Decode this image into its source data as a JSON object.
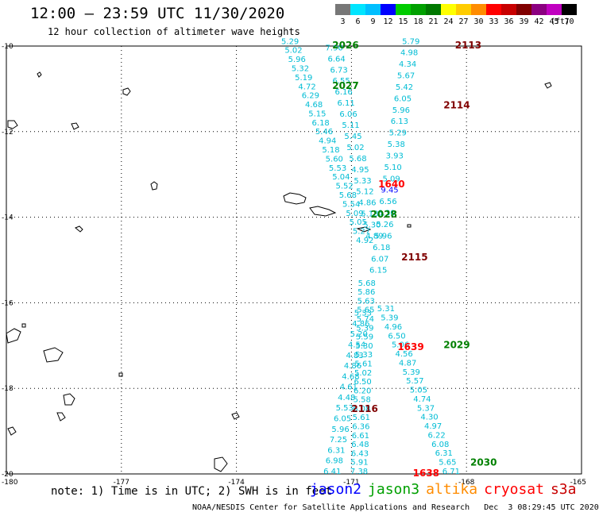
{
  "header": {
    "title": "12:00 — 23:59 UTC 11/30/2020",
    "subtitle": "12 hour collection of altimeter wave heights"
  },
  "scale": {
    "unit": "(ft)",
    "bins": [
      {
        "label": "3",
        "color": "#777777"
      },
      {
        "label": "6",
        "color": "#00e5ff"
      },
      {
        "label": "9",
        "color": "#00bfff"
      },
      {
        "label": "12",
        "color": "#0000ff"
      },
      {
        "label": "15",
        "color": "#00cc00"
      },
      {
        "label": "18",
        "color": "#00a000"
      },
      {
        "label": "21",
        "color": "#007800"
      },
      {
        "label": "24",
        "color": "#ffff00"
      },
      {
        "label": "27",
        "color": "#ffcc00"
      },
      {
        "label": "30",
        "color": "#ff8c00"
      },
      {
        "label": "33",
        "color": "#ff0000"
      },
      {
        "label": "36",
        "color": "#c80000"
      },
      {
        "label": "39",
        "color": "#800000"
      },
      {
        "label": "42",
        "color": "#8b0080"
      },
      {
        "label": "45",
        "color": "#c000c0"
      },
      {
        "label": "70",
        "color": "#000000"
      }
    ]
  },
  "axes": {
    "lat_labels": [
      "-10",
      "-12",
      "-14",
      "-16",
      "-18",
      "-20"
    ],
    "lon_labels": [
      "-180",
      "-177",
      "-174",
      "-171",
      "-168",
      "-165"
    ]
  },
  "track_labels": [
    {
      "text": "2026",
      "color": "#008000",
      "lon": -171.5,
      "lat": -10.0
    },
    {
      "text": "2027",
      "color": "#008000",
      "lon": -171.5,
      "lat": -10.95
    },
    {
      "text": "2028",
      "color": "#008000",
      "lon": -170.5,
      "lat": -13.95
    },
    {
      "text": "2029",
      "color": "#008000",
      "lon": -168.6,
      "lat": -17.0
    },
    {
      "text": "2030",
      "color": "#008000",
      "lon": -167.9,
      "lat": -19.75
    },
    {
      "text": "2113",
      "color": "#800000",
      "lon": -168.3,
      "lat": -10.0
    },
    {
      "text": "2114",
      "color": "#800000",
      "lon": -168.6,
      "lat": -11.4
    },
    {
      "text": "2115",
      "color": "#800000",
      "lon": -169.7,
      "lat": -14.95
    },
    {
      "text": "2116",
      "color": "#800000",
      "lon": -171.0,
      "lat": -18.5
    },
    {
      "text": "1640",
      "color": "#ff0000",
      "lon": -170.3,
      "lat": -13.25
    },
    {
      "text": "1639",
      "color": "#ff0000",
      "lon": -169.8,
      "lat": -17.05
    },
    {
      "text": "1638",
      "color": "#ff0000",
      "lon": -169.4,
      "lat": -20.0
    }
  ],
  "tracks": [
    {
      "name": "track-2026-2028",
      "values": [
        "5.29",
        "5.02",
        "5.96",
        "5.32",
        "5.19",
        "4.72",
        "6.29",
        "4.68",
        "5.15",
        "6.18",
        "5.46",
        "4.94",
        "5.18",
        "5.60",
        "5.53",
        "5.04",
        "5.52",
        "5.68",
        "5.54",
        "5.09",
        "5.05",
        "5.27",
        "4.92"
      ],
      "lon0": -172.6,
      "lat0": -9.95,
      "lon1": -170.65,
      "lat1": -14.6
    },
    {
      "name": "track-2026-2028-b",
      "values": [
        "7.90",
        "6.64",
        "6.73",
        "6.55",
        "6.16",
        "6.11",
        "6.06",
        "5.11",
        "5.45",
        "5.02",
        "5.68",
        "4.95",
        "5.33",
        "5.12",
        "4.86",
        "5.18",
        "5.30",
        "4.89"
      ],
      "lon0": -171.45,
      "lat0": -10.1,
      "lon1": -170.4,
      "lat1": -14.5
    },
    {
      "name": "track-2113-2115",
      "values": [
        "5.79",
        "4.98",
        "4.34",
        "5.67",
        "5.42",
        "6.05",
        "5.96",
        "6.13",
        "5.29",
        "5.38",
        "3.93",
        "5.10",
        "5.09",
        "9.45",
        "6.56",
        "6.30",
        "5.26",
        "5.96",
        "6.18",
        "6.07",
        "6.15"
      ],
      "lon0": -169.45,
      "lat0": -9.95,
      "lon1": -170.3,
      "lat1": -15.3
    },
    {
      "name": "track-2115-2116",
      "values": [
        "5.68",
        "5.86",
        "5.63",
        "5.65",
        "5.74",
        "5.39",
        "5.59",
        "5.30",
        "5.33",
        "5.61",
        "5.02",
        "6.50",
        "6.20",
        "5.58",
        "6.08",
        "5.61",
        "6.36",
        "6.61",
        "6.48",
        "6.43",
        "5.91",
        "7.38"
      ],
      "lon0": -170.6,
      "lat0": -15.6,
      "lon1": -170.8,
      "lat1": -20.0
    },
    {
      "name": "track-2029-2030",
      "values": [
        "5.31",
        "5.39",
        "4.96",
        "6.50",
        "5.06",
        "4.56",
        "4.87",
        "5.39",
        "5.57",
        "5.05",
        "4.74",
        "5.37",
        "4.30",
        "4.97",
        "6.22",
        "6.08",
        "6.31",
        "5.65",
        "6.71"
      ],
      "lon0": -170.1,
      "lat0": -16.2,
      "lon1": -168.4,
      "lat1": -20.0
    },
    {
      "name": "track-2116-west",
      "values": [
        "5.33",
        "4.86",
        "5.20",
        "4.54",
        "4.83",
        "4.86",
        "4.68",
        "4.61",
        "4.48",
        "5.53",
        "6.05",
        "5.96",
        "7.25",
        "6.31",
        "6.98",
        "6.41"
      ],
      "lon0": -170.7,
      "lat0": -16.3,
      "lon1": -171.5,
      "lat1": -20.0
    }
  ],
  "footer": {
    "note": "note: 1) Time is in UTC; 2) SWH is in feet",
    "satellites": [
      {
        "name": "jason2",
        "color": "#0000ff"
      },
      {
        "name": "jason3",
        "color": "#00a000"
      },
      {
        "name": "altika",
        "color": "#ff8c00"
      },
      {
        "name": "cryosat",
        "color": "#ff0000"
      },
      {
        "name": "s3a",
        "color": "#c80000"
      }
    ],
    "credit": "NOAA/NESDIS Center for Satellite Applications and Research   Dec  3 08:29:45 UTC 2020"
  }
}
